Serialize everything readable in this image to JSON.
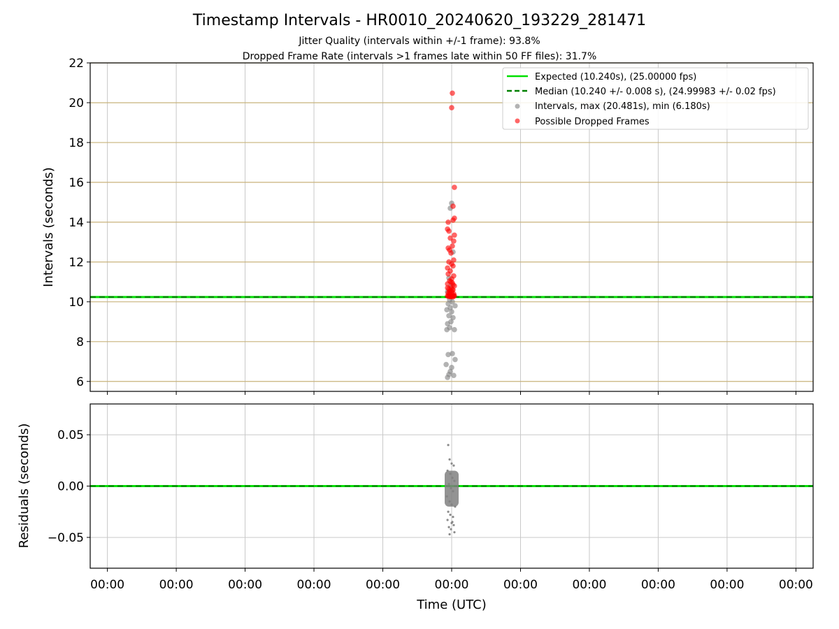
{
  "title": "Timestamp Intervals - HR0010_20240620_193229_281471",
  "subtitle_1": "Jitter Quality (intervals within +/-1 frame): 93.8%",
  "subtitle_2": "Dropped Frame Rate (intervals >1 frames late within 50 FF files): 31.7%",
  "colors": {
    "expected": "#00e000",
    "median": "#008000",
    "intervals": "#808080",
    "dropped": "#ff0000",
    "top_grid": "#c8b27a",
    "grid": "#c8c8c8"
  },
  "chart_data": [
    {
      "type": "scatter",
      "panel": "intervals",
      "ylabel": "Intervals (seconds)",
      "ylim": [
        5.5,
        22
      ],
      "yticks": [
        6,
        8,
        10,
        12,
        14,
        16,
        18,
        20,
        22
      ],
      "ytick_labels": [
        "6",
        "8",
        "10",
        "12",
        "14",
        "16",
        "18",
        "20",
        "22"
      ],
      "x_tick_count": 11,
      "xlim": [
        -0.25,
        10.25
      ],
      "grid": true,
      "expected_line": 10.24,
      "median_line": 10.24,
      "legend": {
        "placement": "top-right",
        "entries": [
          "Expected (10.240s), (25.00000 fps)",
          "Median (10.240 +/- 0.008 s), (24.99983 +/- 0.02 fps)",
          "Intervals, max (20.481s), min (6.180s)",
          "Possible Dropped Frames"
        ]
      },
      "series": [
        {
          "name": "Intervals",
          "x": [
            4.94,
            4.96,
            4.98,
            5.0,
            5.03,
            5.05,
            4.92,
            4.95,
            5.01,
            4.93,
            4.97,
            5.04,
            4.94,
            4.99,
            5.02,
            4.96,
            5.0,
            4.93,
            4.98,
            5.05,
            4.95,
            5.01,
            4.97,
            5.03,
            4.94,
            4.99,
            4.96,
            5.02,
            4.98,
            5.0
          ],
          "y": [
            6.2,
            6.35,
            6.5,
            6.7,
            6.3,
            7.1,
            6.85,
            7.35,
            7.4,
            8.6,
            8.7,
            8.6,
            8.9,
            9.0,
            9.2,
            9.3,
            9.5,
            9.6,
            9.7,
            9.8,
            9.9,
            10.0,
            10.1,
            10.3,
            10.5,
            10.8,
            11.2,
            12.5,
            14.7,
            14.95
          ]
        },
        {
          "name": "Possible Dropped Frames",
          "x": [
            5.01,
            5.0,
            5.04,
            5.02,
            4.95,
            5.04,
            4.94,
            5.02,
            4.96,
            5.04,
            4.98,
            5.03,
            4.95,
            5.01,
            4.97,
            4.99,
            5.03,
            4.96,
            5.0,
            4.94,
            5.02,
            4.98,
            4.95,
            5.03,
            5.0,
            4.97,
            5.01,
            4.94,
            5.04,
            4.99,
            4.96,
            5.02,
            4.98,
            5.0,
            4.95,
            5.03,
            4.97,
            5.01,
            4.94,
            5.04,
            4.96,
            4.99,
            5.02,
            4.98,
            5.0,
            4.95,
            5.03,
            4.97,
            5.01,
            4.94,
            5.02,
            4.99
          ],
          "y": [
            20.48,
            19.75,
            15.75,
            14.8,
            14.0,
            14.2,
            13.65,
            14.1,
            13.55,
            13.35,
            13.2,
            13.05,
            12.7,
            12.8,
            12.6,
            12.45,
            12.1,
            12.0,
            11.9,
            11.7,
            11.8,
            11.55,
            11.4,
            11.3,
            11.15,
            11.05,
            10.95,
            10.9,
            10.8,
            10.7,
            10.65,
            10.6,
            10.55,
            10.5,
            10.45,
            10.4,
            10.4,
            10.35,
            10.3,
            10.3,
            10.28,
            10.26,
            10.25,
            10.26,
            10.27,
            10.28,
            10.29,
            10.5,
            10.6,
            10.7,
            10.85,
            11.0
          ]
        }
      ]
    },
    {
      "type": "scatter",
      "panel": "residuals",
      "ylabel": "Residuals (seconds)",
      "xlabel": "Time (UTC)",
      "ylim": [
        -0.08,
        0.08
      ],
      "yticks": [
        0.05,
        0.0,
        -0.05
      ],
      "ytick_labels": [
        "0.05",
        "0.00",
        "−0.05"
      ],
      "x_tick_labels": [
        "00:00",
        "00:00",
        "00:00",
        "00:00",
        "00:00",
        "00:00",
        "00:00",
        "00:00",
        "00:00",
        "00:00",
        "00:00"
      ],
      "xlim": [
        -0.25,
        10.25
      ],
      "grid": true,
      "expected_line": 0.0,
      "median_line": 0.0,
      "series": [
        {
          "name": "Residuals",
          "x": [
            4.95,
            4.97,
            5.0,
            5.03,
            4.94,
            4.98,
            5.01,
            5.04,
            4.96,
            4.99,
            5.02,
            4.93,
            4.97,
            5.0,
            5.05,
            4.95,
            4.98,
            5.02,
            4.94,
            5.0,
            5.03,
            4.96,
            4.99,
            5.04,
            4.97,
            5.01
          ],
          "y": [
            0.04,
            0.026,
            0.022,
            0.02,
            0.015,
            0.012,
            0.008,
            0.005,
            0.002,
            -0.002,
            -0.005,
            -0.01,
            -0.015,
            -0.018,
            -0.02,
            -0.025,
            -0.028,
            -0.03,
            -0.033,
            -0.036,
            -0.038,
            -0.04,
            -0.042,
            -0.045,
            -0.047,
            -0.035
          ]
        }
      ]
    }
  ]
}
